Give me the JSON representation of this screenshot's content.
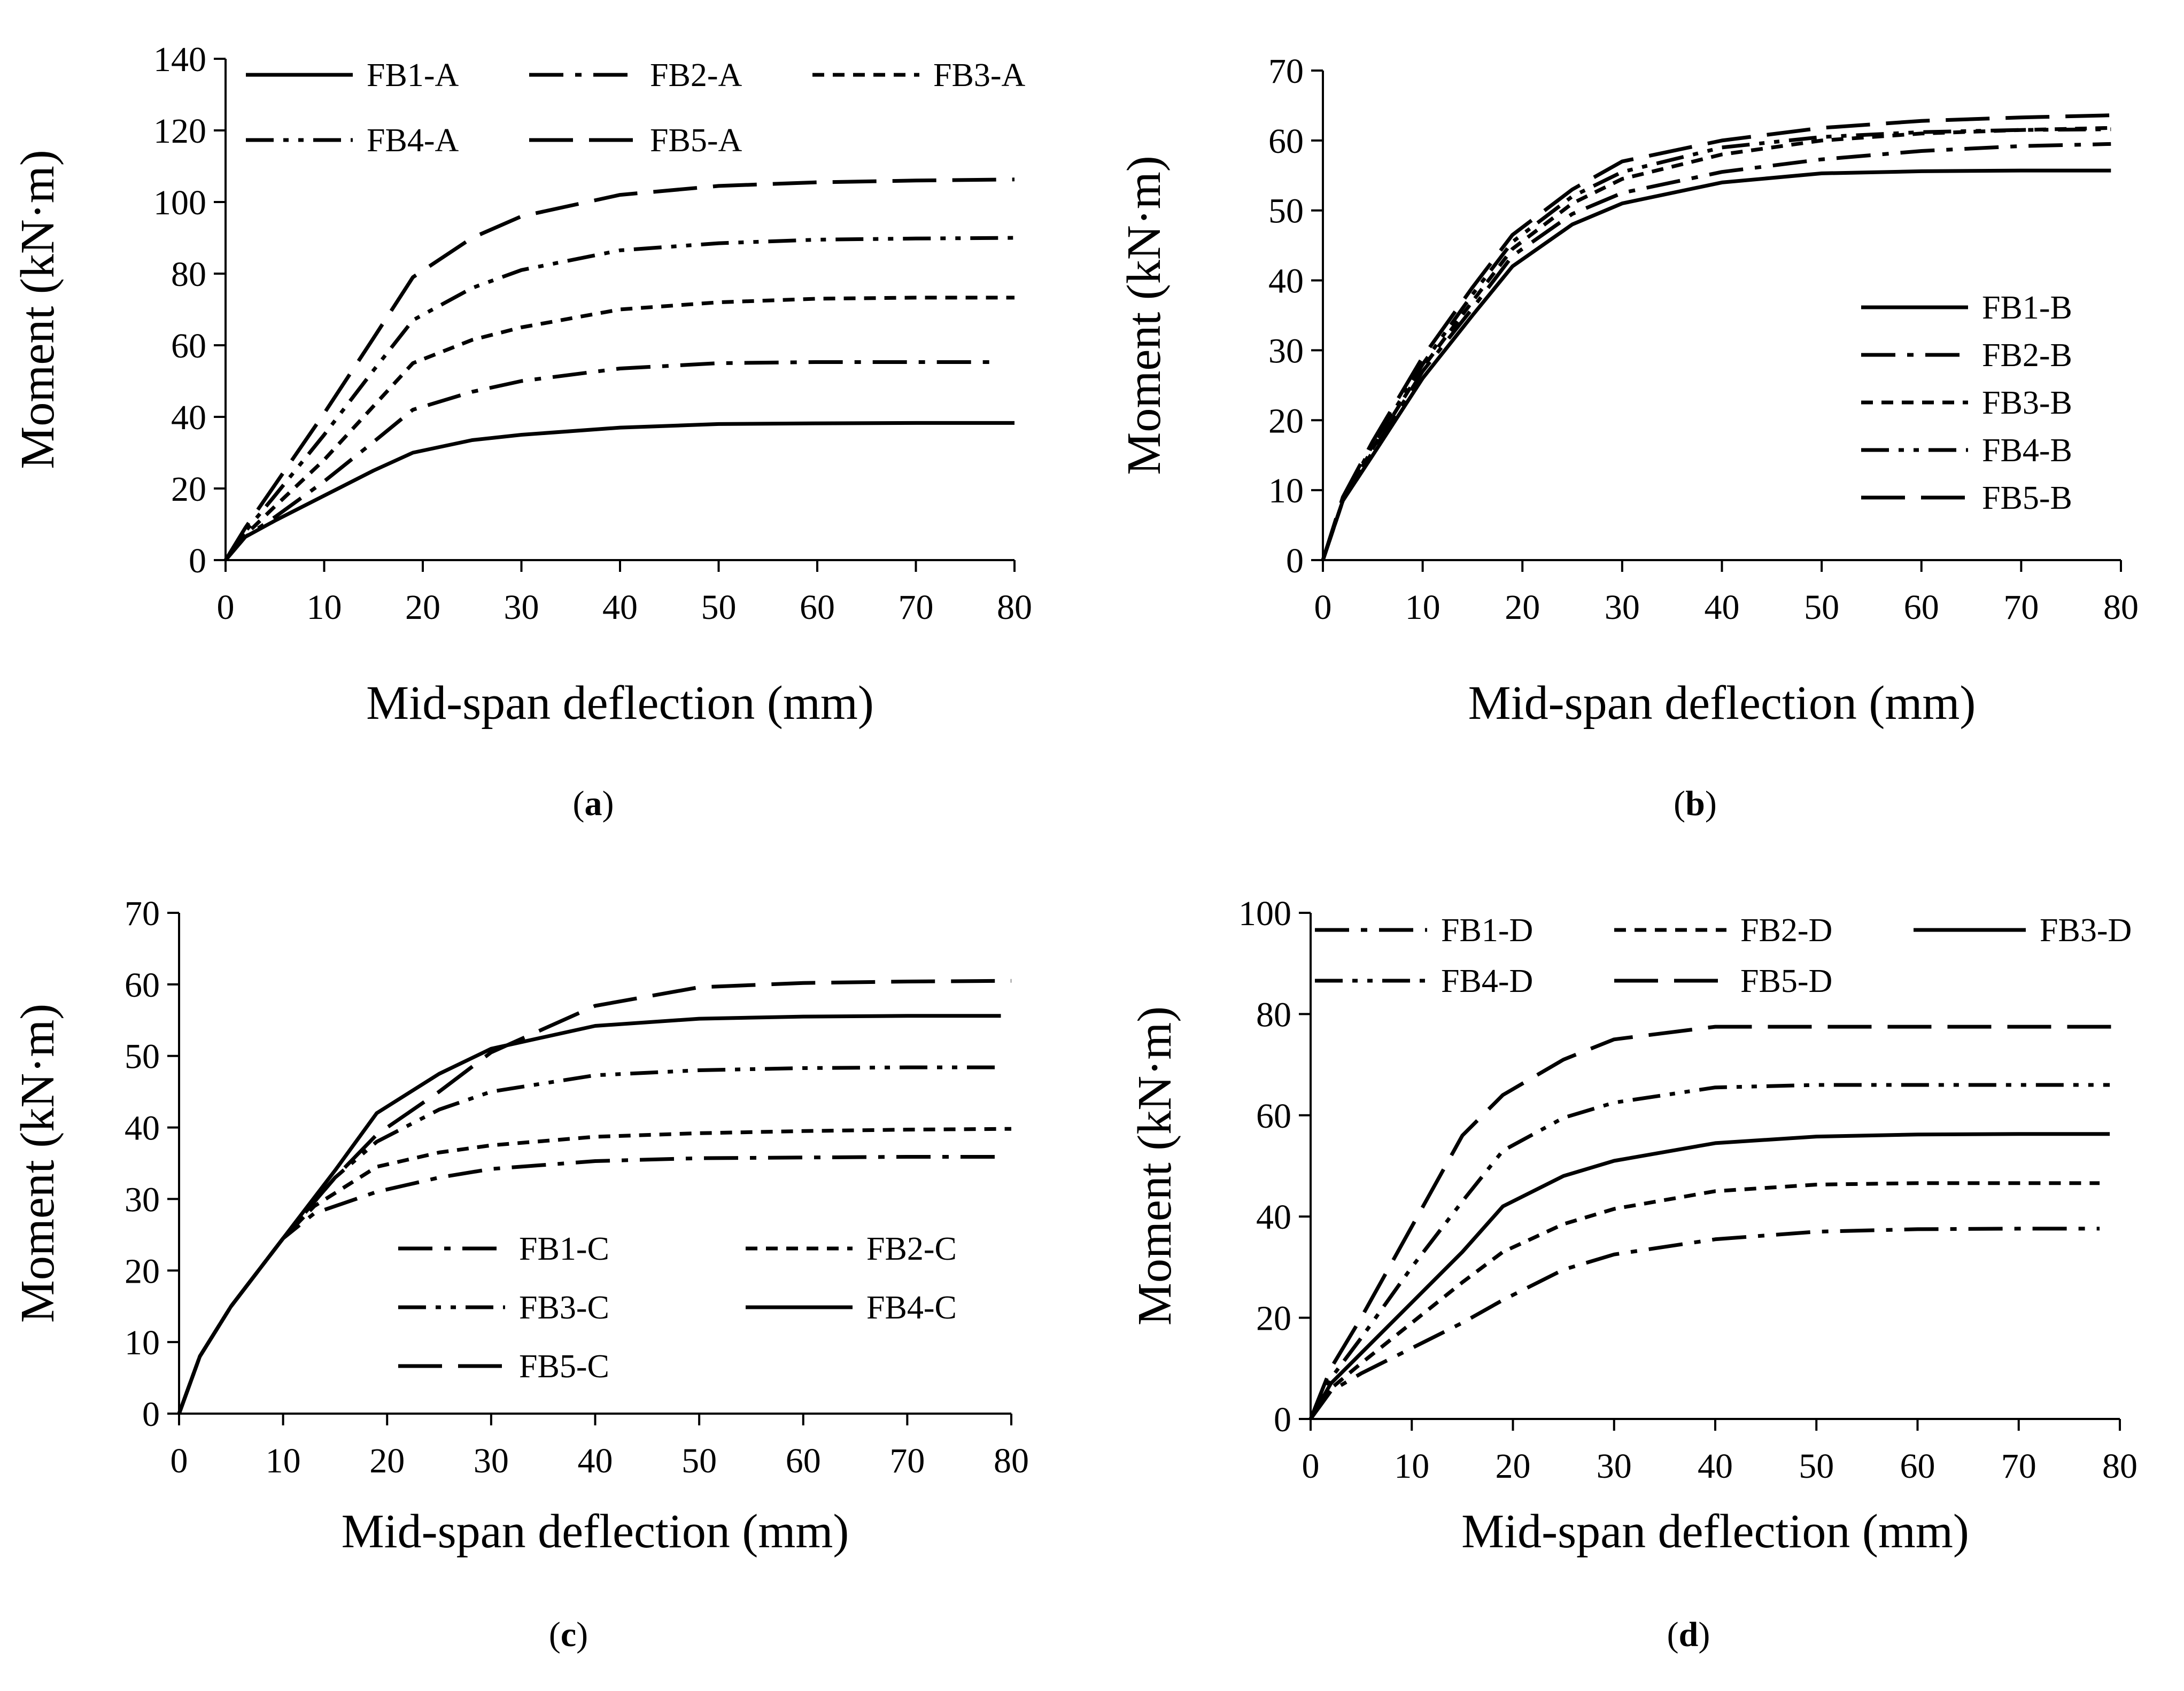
{
  "figure": {
    "panels": [
      {
        "label": "a",
        "caption": "(a)",
        "legend_layout": "top-left, 3 columns"
      },
      {
        "label": "b",
        "caption": "(b)",
        "legend_layout": "bottom-right, 1 column"
      },
      {
        "label": "c",
        "caption": "(c)",
        "legend_layout": "bottom-center, 2 columns"
      },
      {
        "label": "d",
        "caption": "(d)",
        "legend_layout": "top-left, 3 columns"
      }
    ]
  },
  "chart_data": [
    {
      "type": "line",
      "panel": "a",
      "title": "",
      "xlabel": "Mid-span deflection (mm)",
      "ylabel": "Moment (kN·m)",
      "xlim": [
        0,
        80
      ],
      "ylim": [
        0,
        140
      ],
      "xticks": [
        0,
        10,
        20,
        30,
        40,
        50,
        60,
        70,
        80
      ],
      "yticks": [
        0,
        20,
        40,
        60,
        80,
        100,
        120,
        140
      ],
      "grid": false,
      "series": [
        {
          "name": "FB1-A",
          "dash": "solid",
          "x": [
            0,
            2,
            5,
            10,
            15,
            19,
            25,
            30,
            40,
            50,
            60,
            70,
            80
          ],
          "y": [
            0,
            6.5,
            11,
            18,
            25,
            30,
            33.5,
            35,
            37,
            38,
            38.2,
            38.3,
            38.3
          ]
        },
        {
          "name": "FB2-A",
          "dash": "dash-dot",
          "x": [
            0,
            2,
            5,
            10,
            15,
            19,
            25,
            30,
            40,
            50,
            60,
            70,
            78
          ],
          "y": [
            0,
            6.5,
            12,
            22,
            33,
            42,
            47,
            50,
            53.5,
            55,
            55.3,
            55.3,
            55.3
          ]
        },
        {
          "name": "FB3-A",
          "dash": "short-dash",
          "x": [
            0,
            2,
            5,
            10,
            15,
            19,
            25,
            30,
            40,
            50,
            60,
            70,
            80
          ],
          "y": [
            0,
            7,
            15,
            28,
            43,
            55,
            61.5,
            65,
            70,
            72,
            73,
            73.3,
            73.3
          ]
        },
        {
          "name": "FB4-A",
          "dash": "dash-dot-dot",
          "x": [
            0,
            2,
            5,
            10,
            15,
            19,
            25,
            30,
            40,
            50,
            60,
            70,
            80
          ],
          "y": [
            0,
            8,
            18,
            35,
            53,
            67,
            76,
            81,
            86.5,
            88.5,
            89.5,
            89.8,
            90
          ]
        },
        {
          "name": "FB5-A",
          "dash": "long-dash",
          "x": [
            0,
            2,
            5,
            10,
            15,
            19,
            25,
            30,
            40,
            50,
            60,
            70,
            80
          ],
          "y": [
            0,
            9,
            21,
            41,
            62,
            79,
            90,
            96,
            102,
            104.5,
            105.5,
            106,
            106.3
          ]
        }
      ]
    },
    {
      "type": "line",
      "panel": "b",
      "title": "",
      "xlabel": "Mid-span deflection (mm)",
      "ylabel": "Moment (kN·m)",
      "xlim": [
        0,
        80
      ],
      "ylim": [
        0,
        70
      ],
      "xticks": [
        0,
        10,
        20,
        30,
        40,
        50,
        60,
        70,
        80
      ],
      "yticks": [
        0,
        10,
        20,
        30,
        40,
        50,
        60,
        70
      ],
      "grid": false,
      "series": [
        {
          "name": "FB1-B",
          "dash": "solid",
          "x": [
            0,
            2,
            5,
            10,
            15,
            19,
            25,
            30,
            40,
            50,
            60,
            70,
            79
          ],
          "y": [
            0,
            8.5,
            15,
            26,
            35,
            42,
            48,
            51,
            54,
            55.3,
            55.6,
            55.7,
            55.7
          ]
        },
        {
          "name": "FB2-B",
          "dash": "dash-dot",
          "x": [
            0,
            2,
            5,
            10,
            15,
            19,
            25,
            30,
            40,
            50,
            60,
            70,
            79
          ],
          "y": [
            0,
            8.5,
            15.5,
            27,
            36,
            43.5,
            49.5,
            52.5,
            55.5,
            57.3,
            58.5,
            59.2,
            59.5
          ]
        },
        {
          "name": "FB3-B",
          "dash": "short-dash",
          "x": [
            0,
            2,
            5,
            10,
            15,
            19,
            25,
            30,
            40,
            50,
            60,
            70,
            79
          ],
          "y": [
            0,
            8.5,
            16,
            27.5,
            37,
            44.5,
            51,
            54.5,
            58,
            60,
            61,
            61.5,
            61.8
          ]
        },
        {
          "name": "FB4-B",
          "dash": "dash-dot-dot",
          "x": [
            0,
            2,
            5,
            10,
            15,
            19,
            25,
            30,
            40,
            50,
            60,
            70,
            79
          ],
          "y": [
            0,
            8.5,
            16.5,
            28,
            38,
            45.5,
            52,
            55.5,
            59,
            60.5,
            61.2,
            61.5,
            61.6
          ]
        },
        {
          "name": "FB5-B",
          "dash": "long-dash",
          "x": [
            0,
            2,
            5,
            10,
            15,
            19,
            25,
            30,
            40,
            50,
            60,
            70,
            79
          ],
          "y": [
            0,
            9,
            17,
            29,
            39,
            46.5,
            53,
            57,
            60,
            61.8,
            62.8,
            63.3,
            63.6
          ]
        }
      ]
    },
    {
      "type": "line",
      "panel": "c",
      "title": "",
      "xlabel": "Mid-span deflection (mm)",
      "ylabel": "Moment (kN·m)",
      "xlim": [
        0,
        80
      ],
      "ylim": [
        0,
        70
      ],
      "xticks": [
        0,
        10,
        20,
        30,
        40,
        50,
        60,
        70,
        80
      ],
      "yticks": [
        0,
        10,
        20,
        30,
        40,
        50,
        60,
        70
      ],
      "grid": false,
      "series": [
        {
          "name": "FB1-C",
          "dash": "dash-dot",
          "x": [
            0,
            2,
            5,
            10,
            13,
            19,
            25,
            30,
            40,
            50,
            60,
            70,
            79
          ],
          "y": [
            0,
            8,
            15,
            24.5,
            28,
            31,
            33,
            34.2,
            35.3,
            35.7,
            35.8,
            35.9,
            35.9
          ]
        },
        {
          "name": "FB2-C",
          "dash": "short-dash",
          "x": [
            0,
            2,
            5,
            10,
            13,
            19,
            25,
            30,
            40,
            50,
            60,
            70,
            80
          ],
          "y": [
            0,
            8,
            15,
            24.5,
            29,
            34.5,
            36.5,
            37.5,
            38.7,
            39.2,
            39.5,
            39.7,
            39.8
          ]
        },
        {
          "name": "FB3-C",
          "dash": "dash-dot-dot",
          "x": [
            0,
            2,
            5,
            10,
            15,
            19,
            25,
            30,
            40,
            50,
            60,
            70,
            79
          ],
          "y": [
            0,
            8,
            15,
            24.5,
            33,
            38,
            42.5,
            45,
            47.3,
            48,
            48.3,
            48.4,
            48.4
          ]
        },
        {
          "name": "FB4-C",
          "dash": "solid",
          "x": [
            0,
            2,
            5,
            10,
            15,
            19,
            25,
            30,
            40,
            50,
            60,
            70,
            79
          ],
          "y": [
            0,
            8,
            15,
            24.5,
            34,
            42,
            47.5,
            51,
            54.2,
            55.2,
            55.5,
            55.6,
            55.6
          ]
        },
        {
          "name": "FB5-C",
          "dash": "long-dash",
          "x": [
            0,
            2,
            5,
            10,
            15,
            19,
            25,
            30,
            40,
            50,
            60,
            70,
            80
          ],
          "y": [
            0,
            8,
            15,
            24.5,
            33,
            39,
            45,
            50.5,
            57,
            59.6,
            60.2,
            60.4,
            60.5
          ]
        }
      ]
    },
    {
      "type": "line",
      "panel": "d",
      "title": "",
      "xlabel": "Mid-span deflection (mm)",
      "ylabel": "Moment (kN·m)",
      "xlim": [
        0,
        80
      ],
      "ylim": [
        0,
        100
      ],
      "xticks": [
        0,
        10,
        20,
        30,
        40,
        50,
        60,
        70,
        80
      ],
      "yticks": [
        0,
        20,
        40,
        60,
        80,
        100
      ],
      "grid": false,
      "series": [
        {
          "name": "FB1-D",
          "dash": "dash-dot",
          "x": [
            0,
            2,
            5,
            10,
            15,
            19,
            25,
            30,
            40,
            50,
            60,
            70,
            78
          ],
          "y": [
            0,
            5.5,
            9,
            14,
            19,
            23.5,
            29.5,
            32.5,
            35.5,
            37,
            37.5,
            37.6,
            37.6
          ]
        },
        {
          "name": "FB2-D",
          "dash": "short-dash",
          "x": [
            0,
            2,
            5,
            10,
            15,
            19,
            25,
            30,
            40,
            50,
            60,
            70,
            78
          ],
          "y": [
            0,
            6,
            11,
            19,
            27,
            33,
            38.5,
            41.5,
            45,
            46.3,
            46.6,
            46.6,
            46.6
          ]
        },
        {
          "name": "FB3-D",
          "dash": "solid",
          "x": [
            0,
            2,
            5,
            10,
            15,
            19,
            25,
            30,
            40,
            50,
            60,
            70,
            79
          ],
          "y": [
            0,
            7,
            13,
            23,
            33,
            42,
            48,
            51,
            54.5,
            55.8,
            56.2,
            56.3,
            56.3
          ]
        },
        {
          "name": "FB4-D",
          "dash": "dash-dot-dot",
          "x": [
            0,
            2,
            5,
            10,
            15,
            19,
            25,
            30,
            40,
            50,
            60,
            70,
            79
          ],
          "y": [
            0,
            8,
            16,
            30,
            43,
            53,
            59.5,
            62.5,
            65.5,
            66,
            66,
            66,
            66
          ]
        },
        {
          "name": "FB5-D",
          "dash": "long-dash",
          "x": [
            0,
            2,
            5,
            10,
            15,
            19,
            25,
            30,
            40,
            50,
            60,
            70,
            80
          ],
          "y": [
            0,
            10,
            20,
            38,
            56,
            64,
            71,
            75,
            77.5,
            77.5,
            77.5,
            77.5,
            77.5
          ]
        }
      ]
    }
  ]
}
